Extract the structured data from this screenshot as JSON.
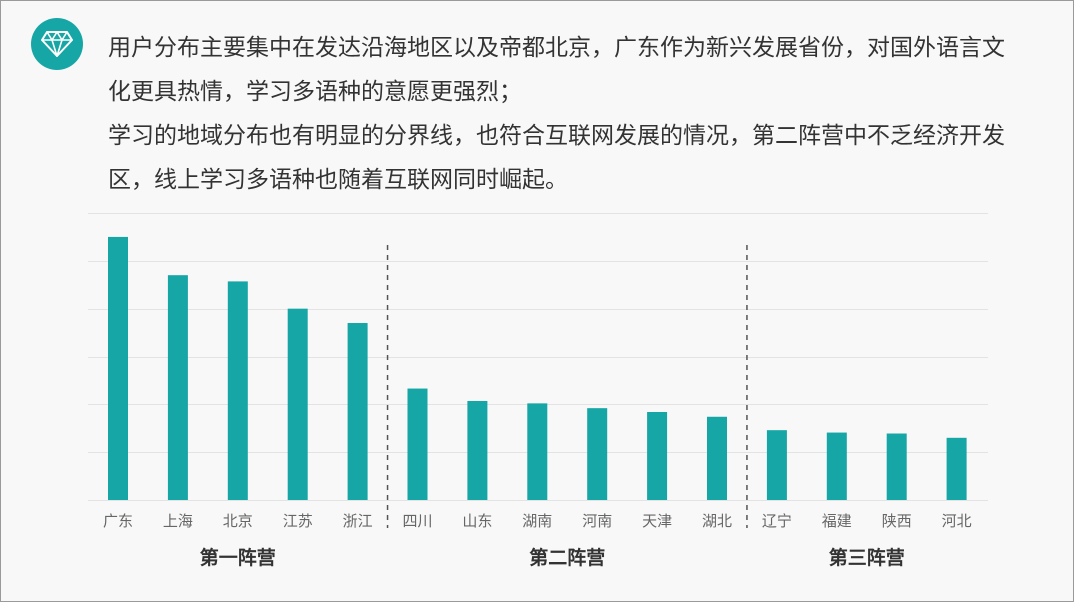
{
  "intro": {
    "paragraphs": [
      "用户分布主要集中在发达沿海地区以及帝都北京，广东作为新兴发展省份，对国外语言文化更具热情，学习多语种的意愿更强烈；",
      "学习的地域分布也有明显的分界线，也符合互联网发展的情况，第二阵营中不乏经济开发区，线上学习多语种也随着互联网同时崛起。"
    ]
  },
  "icon": "diamond-icon",
  "colors": {
    "bar": "#16a6a6",
    "accent": "#16a6a6",
    "grid": "#e3e3e3",
    "text": "#333333",
    "label": "#666666"
  },
  "chart_data": {
    "type": "bar",
    "categories": [
      "广东",
      "上海",
      "北京",
      "江苏",
      "浙江",
      "四川",
      "山东",
      "湖南",
      "河南",
      "天津",
      "湖北",
      "辽宁",
      "福建",
      "陕西",
      "河北"
    ],
    "values": [
      5.5,
      4.7,
      4.57,
      4.0,
      3.7,
      2.33,
      2.07,
      2.02,
      1.92,
      1.84,
      1.74,
      1.46,
      1.41,
      1.39,
      1.3
    ],
    "ylim": [
      0,
      6
    ],
    "grid": true,
    "groups": [
      {
        "label": "第一阵营",
        "start": 0,
        "end": 4
      },
      {
        "label": "第二阵营",
        "start": 5,
        "end": 10
      },
      {
        "label": "第三阵营",
        "start": 11,
        "end": 14
      }
    ],
    "title": "",
    "xlabel": "",
    "ylabel": ""
  }
}
